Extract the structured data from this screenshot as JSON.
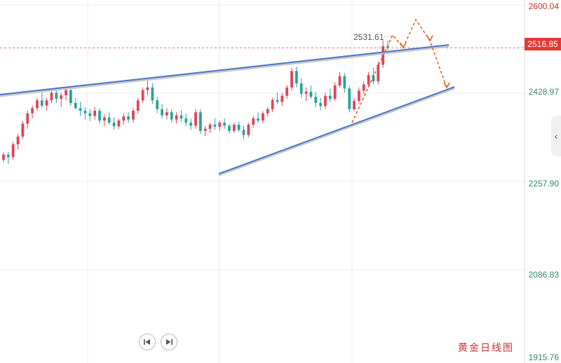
{
  "chart_data": {
    "type": "candlestick",
    "title": "黄金日线图",
    "y_ticks": [
      "2600.04",
      "2428.97",
      "2257.90",
      "2086.83",
      "1915.76"
    ],
    "ylim": [
      1915.76,
      2600.04
    ],
    "current_price": "2516.85",
    "peak_label": "2531.61",
    "grid": true,
    "up_color": "#e0445a",
    "down_color": "#26a69a",
    "candles": [
      [
        2300,
        2315,
        2295,
        2310
      ],
      [
        2310,
        2315,
        2292,
        2305
      ],
      [
        2305,
        2335,
        2300,
        2330
      ],
      [
        2330,
        2350,
        2320,
        2345
      ],
      [
        2345,
        2375,
        2340,
        2370
      ],
      [
        2370,
        2395,
        2360,
        2390
      ],
      [
        2390,
        2405,
        2380,
        2400
      ],
      [
        2400,
        2420,
        2395,
        2415
      ],
      [
        2415,
        2430,
        2400,
        2405
      ],
      [
        2405,
        2420,
        2395,
        2415
      ],
      [
        2415,
        2435,
        2410,
        2430
      ],
      [
        2430,
        2440,
        2410,
        2418
      ],
      [
        2418,
        2430,
        2402,
        2425
      ],
      [
        2425,
        2440,
        2415,
        2435
      ],
      [
        2435,
        2438,
        2405,
        2410
      ],
      [
        2410,
        2420,
        2398,
        2400
      ],
      [
        2400,
        2412,
        2385,
        2395
      ],
      [
        2395,
        2402,
        2378,
        2390
      ],
      [
        2390,
        2398,
        2375,
        2385
      ],
      [
        2385,
        2402,
        2378,
        2395
      ],
      [
        2395,
        2400,
        2370,
        2376
      ],
      [
        2376,
        2388,
        2365,
        2382
      ],
      [
        2382,
        2392,
        2368,
        2372
      ],
      [
        2372,
        2382,
        2358,
        2365
      ],
      [
        2365,
        2380,
        2360,
        2376
      ],
      [
        2376,
        2390,
        2368,
        2384
      ],
      [
        2384,
        2392,
        2372,
        2378
      ],
      [
        2378,
        2400,
        2372,
        2395
      ],
      [
        2395,
        2420,
        2390,
        2415
      ],
      [
        2415,
        2440,
        2410,
        2435
      ],
      [
        2435,
        2455,
        2425,
        2440
      ],
      [
        2440,
        2448,
        2408,
        2415
      ],
      [
        2415,
        2422,
        2390,
        2398
      ],
      [
        2398,
        2408,
        2380,
        2386
      ],
      [
        2386,
        2400,
        2378,
        2392
      ],
      [
        2392,
        2398,
        2372,
        2378
      ],
      [
        2378,
        2392,
        2370,
        2386
      ],
      [
        2386,
        2396,
        2374,
        2380
      ],
      [
        2380,
        2390,
        2365,
        2372
      ],
      [
        2372,
        2380,
        2358,
        2366
      ],
      [
        2366,
        2398,
        2360,
        2392
      ],
      [
        2392,
        2398,
        2350,
        2356
      ],
      [
        2356,
        2366,
        2346,
        2360
      ],
      [
        2360,
        2372,
        2352,
        2368
      ],
      [
        2368,
        2380,
        2358,
        2364
      ],
      [
        2364,
        2376,
        2356,
        2372
      ],
      [
        2372,
        2380,
        2360,
        2366
      ],
      [
        2366,
        2370,
        2350,
        2356
      ],
      [
        2356,
        2372,
        2352,
        2368
      ],
      [
        2368,
        2374,
        2354,
        2358
      ],
      [
        2358,
        2366,
        2340,
        2348
      ],
      [
        2348,
        2372,
        2344,
        2368
      ],
      [
        2368,
        2385,
        2362,
        2380
      ],
      [
        2380,
        2392,
        2372,
        2376
      ],
      [
        2376,
        2394,
        2370,
        2390
      ],
      [
        2390,
        2402,
        2384,
        2398
      ],
      [
        2398,
        2420,
        2392,
        2416
      ],
      [
        2416,
        2430,
        2408,
        2412
      ],
      [
        2412,
        2430,
        2404,
        2424
      ],
      [
        2424,
        2445,
        2418,
        2440
      ],
      [
        2440,
        2478,
        2434,
        2472
      ],
      [
        2472,
        2480,
        2440,
        2448
      ],
      [
        2448,
        2458,
        2420,
        2428
      ],
      [
        2428,
        2440,
        2414,
        2432
      ],
      [
        2432,
        2444,
        2418,
        2422
      ],
      [
        2422,
        2432,
        2402,
        2410
      ],
      [
        2410,
        2420,
        2396,
        2404
      ],
      [
        2404,
        2430,
        2398,
        2424
      ],
      [
        2424,
        2438,
        2412,
        2418
      ],
      [
        2418,
        2450,
        2414,
        2444
      ],
      [
        2444,
        2470,
        2440,
        2462
      ],
      [
        2462,
        2468,
        2430,
        2438
      ],
      [
        2438,
        2444,
        2392,
        2398
      ],
      [
        2398,
        2420,
        2394,
        2414
      ],
      [
        2414,
        2440,
        2408,
        2434
      ],
      [
        2434,
        2452,
        2428,
        2446
      ],
      [
        2446,
        2470,
        2440,
        2464
      ],
      [
        2464,
        2478,
        2446,
        2452
      ],
      [
        2452,
        2490,
        2446,
        2484
      ],
      [
        2484,
        2531.61,
        2478,
        2520
      ],
      [
        2520,
        2531,
        2512,
        2516.85
      ]
    ]
  },
  "ui": {
    "collapse_arrow": "‹"
  }
}
